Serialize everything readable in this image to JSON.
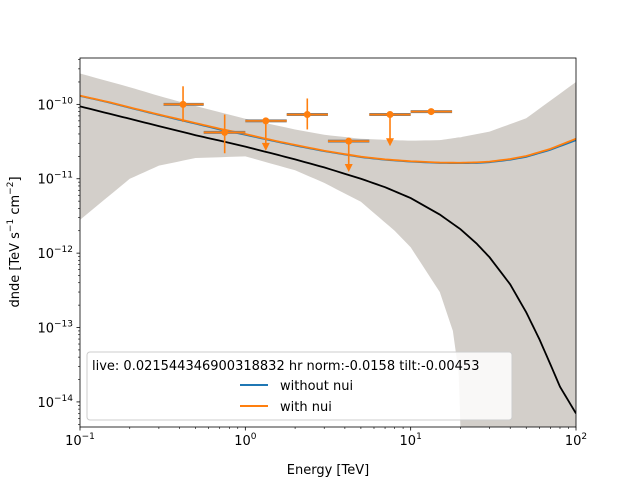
{
  "chart_data": {
    "type": "line",
    "title": "",
    "xlabel": "Energy [TeV]",
    "ylabel_base": "dnde [TeV s",
    "ylabel_exp1": "−1",
    "ylabel_mid": " cm",
    "ylabel_exp2": "−2",
    "ylabel_end": "]",
    "xscale": "log",
    "yscale": "log",
    "xlim": [
      0.1,
      100
    ],
    "ylim": [
      4.6e-15,
      4.2e-10
    ],
    "xticks": [
      {
        "value": 0.1,
        "base": "10",
        "exp": "−1"
      },
      {
        "value": 1,
        "base": "10",
        "exp": "0"
      },
      {
        "value": 10,
        "base": "10",
        "exp": "1"
      },
      {
        "value": 100,
        "base": "10",
        "exp": "2"
      }
    ],
    "yticks": [
      {
        "value": 1e-14,
        "base": "10",
        "exp": "−14"
      },
      {
        "value": 1e-13,
        "base": "10",
        "exp": "−13"
      },
      {
        "value": 1e-12,
        "base": "10",
        "exp": "−12"
      },
      {
        "value": 1e-11,
        "base": "10",
        "exp": "−11"
      },
      {
        "value": 1e-10,
        "base": "10",
        "exp": "−10"
      }
    ],
    "colors": {
      "model_without_nui": "#1f77b4",
      "model_with_nui": "#ff7f0e",
      "reference_model": "#000000",
      "error_band": "#d3cfca",
      "flux_points": "#ff7f0e",
      "flux_points_edge": "#7f7f7f"
    },
    "legend": {
      "title": "live: 0.021544346900318832 hr norm:-0.0158 tilt:-0.00453",
      "placement": "lower-center",
      "entries": [
        {
          "label": "without nui",
          "color": "#1f77b4"
        },
        {
          "label": "with nui",
          "color": "#ff7f0e"
        }
      ]
    },
    "error_band": {
      "x": [
        0.1,
        0.2,
        0.3,
        0.5,
        1,
        2,
        3,
        5,
        8,
        10,
        15,
        18,
        19.5,
        20,
        20.5,
        30,
        50,
        100
      ],
      "upper": [
        2.6e-10,
        1.7e-10,
        1.3e-10,
        9.5e-11,
        6.4e-11,
        4.6e-11,
        3.9e-11,
        3.45e-11,
        3.3e-11,
        3.25e-11,
        3.3e-11,
        3.5e-11,
        3.6e-11,
        3.6e-11,
        3.65e-11,
        4.3e-11,
        6.5e-11,
        2e-10
      ],
      "lower": [
        2.8e-12,
        1e-11,
        1.5e-11,
        1.9e-11,
        2e-11,
        1.3e-11,
        8.8e-12,
        4.9e-12,
        2e-12,
        1.2e-12,
        3e-13,
        9e-14,
        2.5e-14,
        4.6e-15,
        4.6e-15,
        4.6e-15,
        4.6e-15,
        4.6e-15
      ]
    },
    "series": [
      {
        "name": "without nui",
        "color": "#1f77b4",
        "x": [
          0.1,
          0.15,
          0.2,
          0.3,
          0.5,
          0.7,
          1,
          1.5,
          2,
          3,
          5,
          7,
          10,
          15,
          20,
          25,
          30,
          40,
          50,
          70,
          100
        ],
        "y": [
          1.3e-10,
          1.06e-10,
          9e-11,
          7.2e-11,
          5.5e-11,
          4.6e-11,
          3.9e-11,
          3.2e-11,
          2.8e-11,
          2.35e-11,
          1.95e-11,
          1.8e-11,
          1.7e-11,
          1.63e-11,
          1.62e-11,
          1.63e-11,
          1.67e-11,
          1.8e-11,
          1.97e-11,
          2.45e-11,
          3.3e-11
        ]
      },
      {
        "name": "with nui",
        "color": "#ff7f0e",
        "x": [
          0.1,
          0.15,
          0.2,
          0.3,
          0.5,
          0.7,
          1,
          1.5,
          2,
          3,
          5,
          7,
          10,
          15,
          20,
          25,
          30,
          40,
          50,
          70,
          100
        ],
        "y": [
          1.31e-10,
          1.07e-10,
          9.1e-11,
          7.3e-11,
          5.6e-11,
          4.7e-11,
          4e-11,
          3.25e-11,
          2.85e-11,
          2.38e-11,
          1.98e-11,
          1.82e-11,
          1.72e-11,
          1.65e-11,
          1.64e-11,
          1.66e-11,
          1.7e-11,
          1.84e-11,
          2.02e-11,
          2.52e-11,
          3.45e-11
        ]
      },
      {
        "color": "#000000",
        "x": [
          0.1,
          0.15,
          0.2,
          0.3,
          0.5,
          0.7,
          1,
          1.5,
          2,
          3,
          5,
          7,
          10,
          15,
          20,
          25,
          30,
          40,
          50,
          60,
          70,
          80,
          100
        ],
        "y": [
          9.4e-11,
          7.5e-11,
          6.4e-11,
          5.1e-11,
          3.85e-11,
          3.25e-11,
          2.7e-11,
          2.15e-11,
          1.82e-11,
          1.42e-11,
          1e-11,
          7.7e-12,
          5.5e-12,
          3.3e-12,
          2.1e-12,
          1.35e-12,
          8.8e-13,
          3.8e-13,
          1.6e-13,
          7e-14,
          3.2e-14,
          1.6e-14,
          7e-15
        ]
      }
    ],
    "flux_points": [
      {
        "x": 0.42,
        "y": 1e-10,
        "xlo": 0.32,
        "xhi": 0.56,
        "ylo": 5.8e-11,
        "yhi": 1.75e-10,
        "upper_limit": false
      },
      {
        "x": 0.75,
        "y": 4.2e-11,
        "xlo": 0.56,
        "xhi": 1.0,
        "ylo": 2.2e-11,
        "yhi": 7.3e-11,
        "upper_limit": false
      },
      {
        "x": 1.33,
        "y": 6e-11,
        "xlo": 1.0,
        "xhi": 1.78,
        "ylo": 2.6e-11,
        "yhi": 6e-11,
        "upper_limit": true
      },
      {
        "x": 2.37,
        "y": 7.3e-11,
        "xlo": 1.78,
        "xhi": 3.16,
        "ylo": 4.6e-11,
        "yhi": 1.2e-10,
        "upper_limit": false
      },
      {
        "x": 4.22,
        "y": 3.2e-11,
        "xlo": 3.16,
        "xhi": 5.62,
        "ylo": 1.35e-11,
        "yhi": 3.2e-11,
        "upper_limit": true
      },
      {
        "x": 7.5,
        "y": 7.3e-11,
        "xlo": 5.62,
        "xhi": 10.0,
        "ylo": 3e-11,
        "yhi": 7.3e-11,
        "upper_limit": true
      },
      {
        "x": 13.3,
        "y": 8e-11,
        "xlo": 10.0,
        "xhi": 17.8,
        "ylo": 7.6e-11,
        "yhi": 8.6e-11,
        "upper_limit": false
      }
    ]
  }
}
